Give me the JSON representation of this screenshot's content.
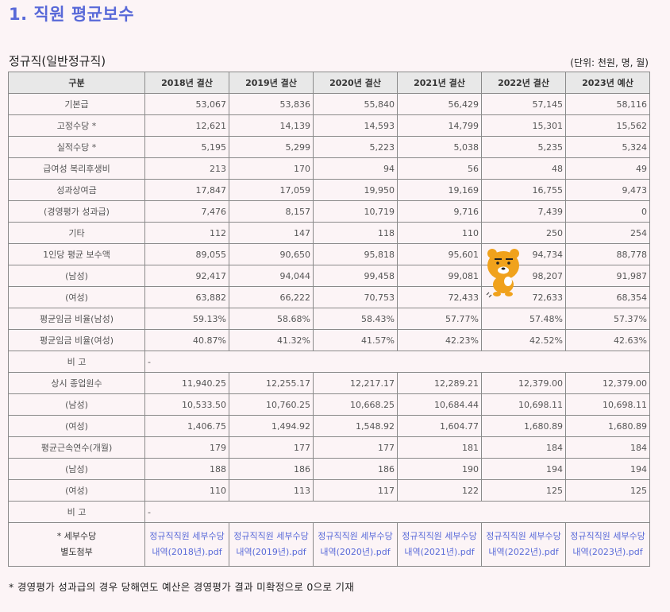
{
  "title": "1. 직원 평균보수",
  "section_title": "정규직(일반정규직)",
  "unit": "(단위: 천원, 명, 월)",
  "header": [
    "구분",
    "2018년 결산",
    "2019년 결산",
    "2020년 결산",
    "2021년 결산",
    "2022년 결산",
    "2023년 예산"
  ],
  "rows": [
    {
      "label": "기본급",
      "values": [
        "53,067",
        "53,836",
        "55,840",
        "56,429",
        "57,145",
        "58,116"
      ]
    },
    {
      "label": "고정수당 *",
      "values": [
        "12,621",
        "14,139",
        "14,593",
        "14,799",
        "15,301",
        "15,562"
      ]
    },
    {
      "label": "실적수당 *",
      "values": [
        "5,195",
        "5,299",
        "5,223",
        "5,038",
        "5,235",
        "5,324"
      ]
    },
    {
      "label": "급여성 복리후생비",
      "values": [
        "213",
        "170",
        "94",
        "56",
        "48",
        "49"
      ]
    },
    {
      "label": "성과상여금",
      "values": [
        "17,847",
        "17,059",
        "19,950",
        "19,169",
        "16,755",
        "9,473"
      ]
    },
    {
      "label": "(경영평가 성과급)",
      "values": [
        "7,476",
        "8,157",
        "10,719",
        "9,716",
        "7,439",
        "0"
      ]
    },
    {
      "label": "기타",
      "values": [
        "112",
        "147",
        "118",
        "110",
        "250",
        "254"
      ]
    },
    {
      "label": "1인당 평균 보수액",
      "values": [
        "89,055",
        "90,650",
        "95,818",
        "95,601",
        "94,734",
        "88,778"
      ]
    },
    {
      "label": "(남성)",
      "values": [
        "92,417",
        "94,044",
        "99,458",
        "99,081",
        "98,207",
        "91,987"
      ]
    },
    {
      "label": "(여성)",
      "values": [
        "63,882",
        "66,222",
        "70,753",
        "72,433",
        "72,633",
        "68,354"
      ]
    },
    {
      "label": "평균임금 비율(남성)",
      "values": [
        "59.13%",
        "58.68%",
        "58.43%",
        "57.77%",
        "57.48%",
        "57.37%"
      ]
    },
    {
      "label": "평균임금 비율(여성)",
      "values": [
        "40.87%",
        "41.32%",
        "41.57%",
        "42.23%",
        "42.52%",
        "42.63%"
      ]
    }
  ],
  "note1": {
    "label": "비 고",
    "value": "-"
  },
  "rows2": [
    {
      "label": "상시 종업원수",
      "values": [
        "11,940.25",
        "12,255.17",
        "12,217.17",
        "12,289.21",
        "12,379.00",
        "12,379.00"
      ]
    },
    {
      "label": "(남성)",
      "values": [
        "10,533.50",
        "10,760.25",
        "10,668.25",
        "10,684.44",
        "10,698.11",
        "10,698.11"
      ]
    },
    {
      "label": "(여성)",
      "values": [
        "1,406.75",
        "1,494.92",
        "1,548.92",
        "1,604.77",
        "1,680.89",
        "1,680.89"
      ]
    },
    {
      "label": "평균근속연수(개월)",
      "values": [
        "179",
        "177",
        "177",
        "181",
        "184",
        "184"
      ]
    },
    {
      "label": "(남성)",
      "values": [
        "188",
        "186",
        "186",
        "190",
        "194",
        "194"
      ]
    },
    {
      "label": "(여성)",
      "values": [
        "110",
        "113",
        "117",
        "122",
        "125",
        "125"
      ]
    }
  ],
  "note2": {
    "label": "비 고",
    "value": "-"
  },
  "attachments": {
    "label_line1": "* 세부수당",
    "label_line2": "별도첨부",
    "files": [
      "정규직직원 세부수당내역(2018년).pdf",
      "정규직직원 세부수당내역(2019년).pdf",
      "정규직직원 세부수당내역(2020년).pdf",
      "정규직직원 세부수당내역(2021년).pdf",
      "정규직직원 세부수당내역(2022년).pdf",
      "정규직직원 세부수당내역(2023년).pdf"
    ]
  },
  "footnote": "* 경영평가 성과급의 경우 당해연도 예산은 경영평가 결과 미확정으로 0으로 기재",
  "mascot": {
    "icon": "bear-mascot-icon",
    "fur_color": "#f0a21c"
  }
}
